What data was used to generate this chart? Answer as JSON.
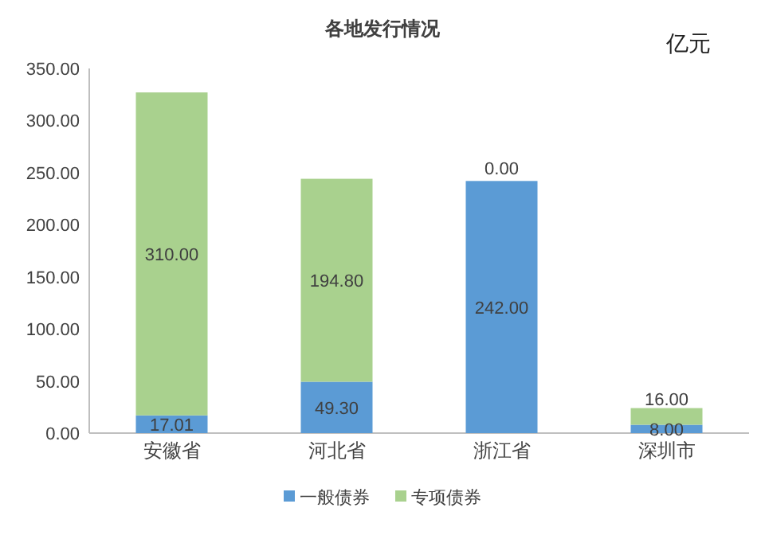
{
  "chart_data": {
    "type": "bar",
    "title": "各地发行情况",
    "annotations": [
      "亿元"
    ],
    "categories": [
      "安徽省",
      "河北省",
      "浙江省",
      "深圳市"
    ],
    "stacked": true,
    "series": [
      {
        "name": "一般债券",
        "color": "#5b9bd5",
        "values": [
          17.01,
          49.3,
          242.0,
          8.0
        ],
        "value_labels": [
          "17.01",
          "49.30",
          "242.00",
          "8.00"
        ]
      },
      {
        "name": "专项债券",
        "color": "#a9d18e",
        "values": [
          310.0,
          194.8,
          0.0,
          16.0
        ],
        "value_labels": [
          "310.00",
          "194.80",
          "0.00",
          "16.00"
        ]
      }
    ],
    "ylim": [
      0,
      350
    ],
    "yticks": [
      {
        "value": 0,
        "label": "0.00"
      },
      {
        "value": 50,
        "label": "50.00"
      },
      {
        "value": 100,
        "label": "100.00"
      },
      {
        "value": 150,
        "label": "150.00"
      },
      {
        "value": 200,
        "label": "200.00"
      },
      {
        "value": 250,
        "label": "250.00"
      },
      {
        "value": 300,
        "label": "300.00"
      },
      {
        "value": 350,
        "label": "350.00"
      }
    ],
    "legend": "bottom"
  }
}
